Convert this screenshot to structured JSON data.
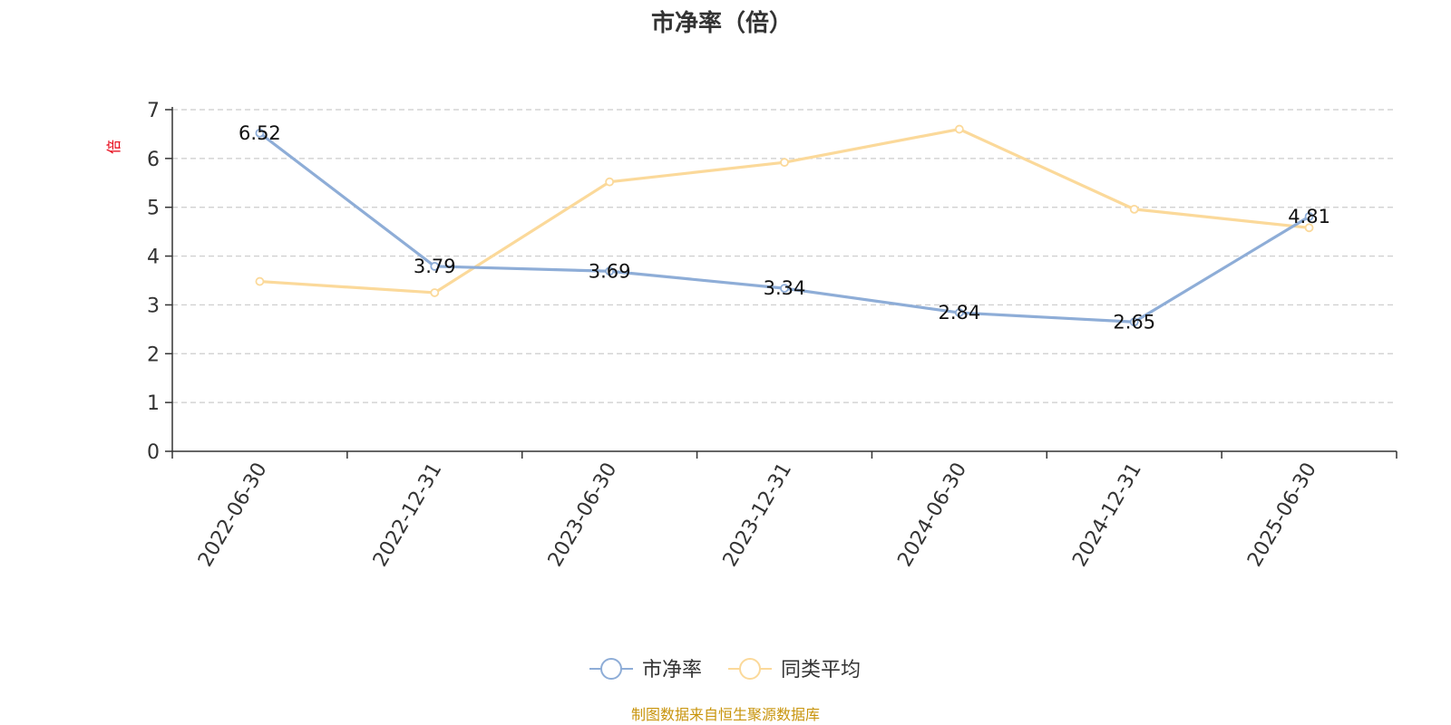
{
  "chart_data": {
    "type": "line",
    "title": "市净率（倍）",
    "ylabel": "倍",
    "categories": [
      "2022-06-30",
      "2022-12-31",
      "2023-06-30",
      "2023-12-31",
      "2024-06-30",
      "2024-12-31",
      "2025-06-30"
    ],
    "ylim": [
      0,
      7
    ],
    "yticks": [
      0,
      1,
      2,
      3,
      4,
      5,
      6,
      7
    ],
    "grid": true,
    "legend_position": "bottom-center",
    "series": [
      {
        "name": "市净率",
        "color": "#8eadd7",
        "values": [
          6.52,
          3.79,
          3.69,
          3.34,
          2.84,
          2.65,
          4.81
        ],
        "labels": [
          "6.52",
          "3.79",
          "3.69",
          "3.34",
          "2.84",
          "2.65",
          "4.81"
        ]
      },
      {
        "name": "同类平均",
        "color": "#fbd99a",
        "values": [
          3.48,
          3.25,
          5.52,
          5.92,
          6.6,
          4.96,
          4.58
        ]
      }
    ]
  },
  "footer": {
    "source": "制图数据来自恒生聚源数据库"
  }
}
